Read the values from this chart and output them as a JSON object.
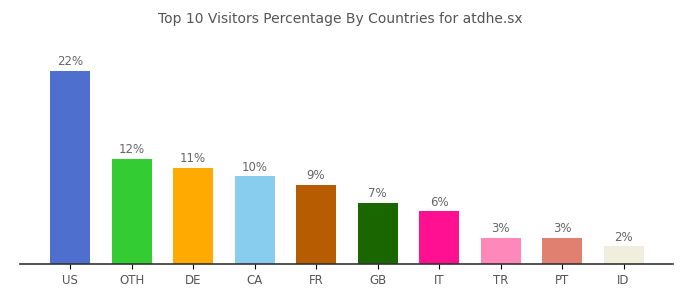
{
  "categories": [
    "US",
    "OTH",
    "DE",
    "CA",
    "FR",
    "GB",
    "IT",
    "TR",
    "PT",
    "ID"
  ],
  "values": [
    22,
    12,
    11,
    10,
    9,
    7,
    6,
    3,
    3,
    2
  ],
  "labels": [
    "22%",
    "12%",
    "11%",
    "10%",
    "9%",
    "7%",
    "6%",
    "3%",
    "3%",
    "2%"
  ],
  "bar_colors": [
    "#4f6fcf",
    "#33cc33",
    "#ffaa00",
    "#88ccee",
    "#b85c00",
    "#1a6600",
    "#ff1090",
    "#ff88bb",
    "#e08070",
    "#f0eedd"
  ],
  "title": "Top 10 Visitors Percentage By Countries for atdhe.sx",
  "ylim": [
    0,
    26
  ],
  "background_color": "#ffffff",
  "title_fontsize": 10,
  "label_fontsize": 8.5,
  "tick_fontsize": 8.5,
  "bar_width": 0.65
}
